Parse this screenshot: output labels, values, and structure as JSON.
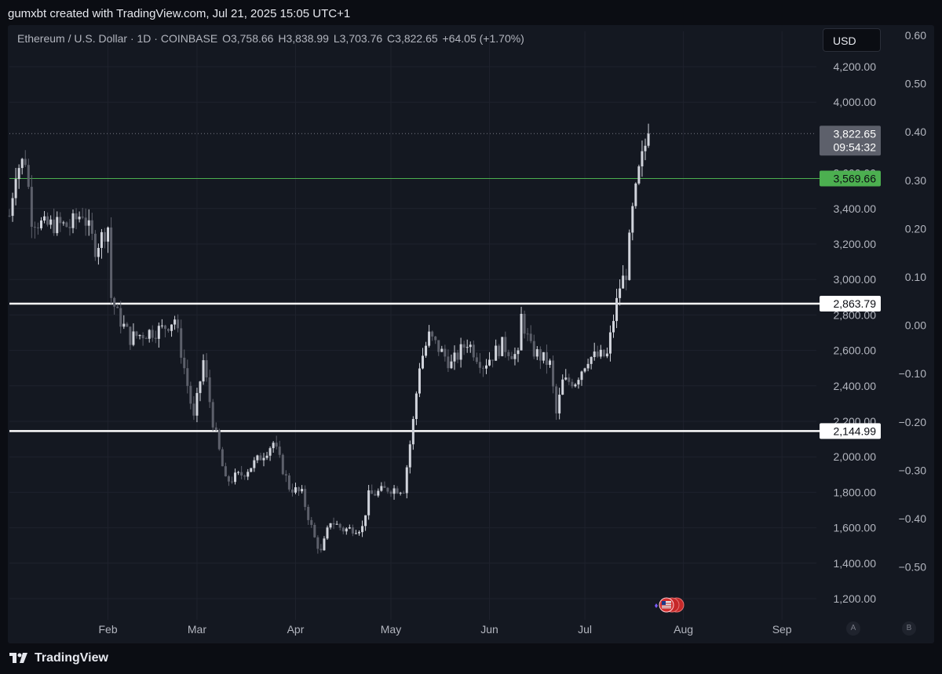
{
  "header": {
    "created_by": "gumxbt created with TradingView.com, Jul 21, 2025 15:05 UTC+1"
  },
  "legend": {
    "symbol": "Ethereum / U.S. Dollar · 1D · COINBASE",
    "open": "O3,758.66",
    "high": "H3,838.99",
    "low": "L3,703.76",
    "close": "C3,822.65",
    "change": "+64.05 (+1.70%)"
  },
  "currency_button": "USD",
  "scale_buttons": {
    "a": "A",
    "b": "B"
  },
  "footer": {
    "brand": "TradingView"
  },
  "colors": {
    "panel_bg": "#141821",
    "candle_up": "#d1d4dc",
    "candle_down": "#5d606b",
    "green_line": "#4caf50",
    "white_line": "#ffffff"
  },
  "chart_data": {
    "type": "candlestick",
    "price_axis": {
      "labels": [
        "4,200.00",
        "4,000.00",
        "3,400.00",
        "3,200.00",
        "3,000.00",
        "2,800.00",
        "2,600.00",
        "2,400.00",
        "2,200.00",
        "2,000.00",
        "1,800.00",
        "1,600.00",
        "1,400.00",
        "1,200.00"
      ],
      "values": [
        4200,
        4000,
        3400,
        3200,
        3000,
        2800,
        2600,
        2400,
        2200,
        2000,
        1800,
        1600,
        1400,
        1200
      ],
      "ylim": [
        1150,
        4350
      ]
    },
    "secondary_axis": {
      "labels": [
        "0.60",
        "0.50",
        "0.40",
        "0.30",
        "0.20",
        "0.10",
        "0.00",
        "−0.10",
        "−0.20",
        "−0.30",
        "−0.40",
        "−0.50"
      ],
      "values": [
        0.6,
        0.5,
        0.4,
        0.3,
        0.2,
        0.1,
        0.0,
        -0.1,
        -0.2,
        -0.3,
        -0.4,
        -0.5
      ]
    },
    "time_axis": {
      "labels": [
        "Feb",
        "Mar",
        "Apr",
        "May",
        "Jun",
        "Jul",
        "Aug",
        "Sep"
      ]
    },
    "current_price": {
      "value": 3822.65,
      "label": "3,822.65",
      "countdown": "09:54:32"
    },
    "horizontal_lines": [
      {
        "value": 3569.66,
        "label": "3,569.66",
        "style": "green"
      },
      {
        "value": 2863.79,
        "label": "2,863.79",
        "style": "white"
      },
      {
        "value": 2144.99,
        "label": "2,144.99",
        "style": "white"
      }
    ],
    "close_path": [
      [
        "2025-01-01",
        3360
      ],
      [
        "2025-01-03",
        3620
      ],
      [
        "2025-01-06",
        3680
      ],
      [
        "2025-01-08",
        3350
      ],
      [
        "2025-01-12",
        3300
      ],
      [
        "2025-01-15",
        3310
      ],
      [
        "2025-01-20",
        3300
      ],
      [
        "2025-01-24",
        3380
      ],
      [
        "2025-01-28",
        3180
      ],
      [
        "2025-02-01",
        3300
      ],
      [
        "2025-02-02",
        2900
      ],
      [
        "2025-02-04",
        2800
      ],
      [
        "2025-02-08",
        2670
      ],
      [
        "2025-02-13",
        2700
      ],
      [
        "2025-02-18",
        2720
      ],
      [
        "2025-02-22",
        2780
      ],
      [
        "2025-02-25",
        2500
      ],
      [
        "2025-02-28",
        2210
      ],
      [
        "2025-03-03",
        2540
      ],
      [
        "2025-03-06",
        2200
      ],
      [
        "2025-03-10",
        1860
      ],
      [
        "2025-03-15",
        1900
      ],
      [
        "2025-03-20",
        1980
      ],
      [
        "2025-03-25",
        2080
      ],
      [
        "2025-03-30",
        1830
      ],
      [
        "2025-04-03",
        1790
      ],
      [
        "2025-04-07",
        1540
      ],
      [
        "2025-04-09",
        1460
      ],
      [
        "2025-04-12",
        1640
      ],
      [
        "2025-04-16",
        1590
      ],
      [
        "2025-04-22",
        1600
      ],
      [
        "2025-04-24",
        1780
      ],
      [
        "2025-04-30",
        1820
      ],
      [
        "2025-05-05",
        1820
      ],
      [
        "2025-05-08",
        2200
      ],
      [
        "2025-05-10",
        2520
      ],
      [
        "2025-05-13",
        2680
      ],
      [
        "2025-05-20",
        2520
      ],
      [
        "2025-05-25",
        2650
      ],
      [
        "2025-05-30",
        2520
      ],
      [
        "2025-06-05",
        2630
      ],
      [
        "2025-06-10",
        2560
      ],
      [
        "2025-06-11",
        2790
      ],
      [
        "2025-06-14",
        2610
      ],
      [
        "2025-06-20",
        2520
      ],
      [
        "2025-06-22",
        2240
      ],
      [
        "2025-06-24",
        2420
      ],
      [
        "2025-06-28",
        2430
      ],
      [
        "2025-07-02",
        2560
      ],
      [
        "2025-07-08",
        2570
      ],
      [
        "2025-07-10",
        2780
      ],
      [
        "2025-07-12",
        2960
      ],
      [
        "2025-07-14",
        3040
      ],
      [
        "2025-07-16",
        3380
      ],
      [
        "2025-07-18",
        3600
      ],
      [
        "2025-07-20",
        3758
      ],
      [
        "2025-07-21",
        3822
      ]
    ]
  }
}
